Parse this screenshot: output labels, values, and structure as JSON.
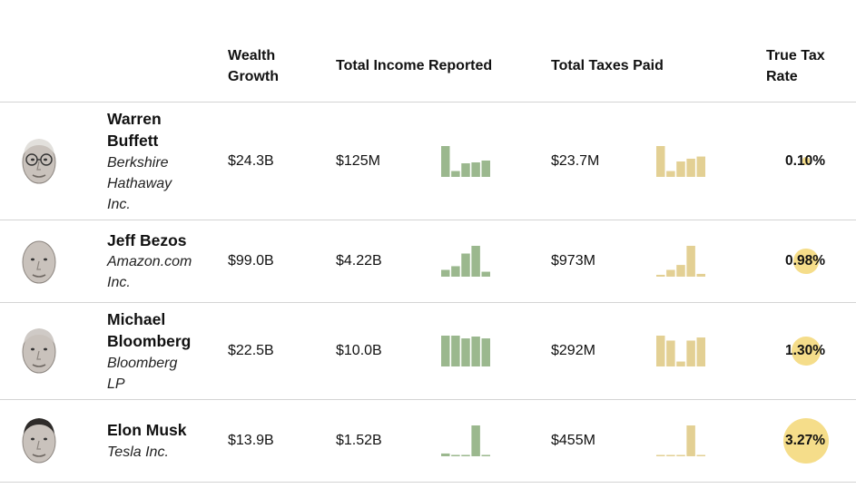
{
  "colors": {
    "income_bars": "#9bb88e",
    "tax_bars": "#e3d094",
    "rate_circle": "#f5dd8a",
    "divider": "#d4d4d4"
  },
  "headers": {
    "wealth_growth_line1": "Wealth",
    "wealth_growth_line2": "Growth",
    "income": "Total Income Reported",
    "taxes": "Total Taxes Paid",
    "rate_line1": "True Tax",
    "rate_line2": "Rate"
  },
  "rows": [
    {
      "name_lines": [
        "Warren",
        "Buffett"
      ],
      "company_lines": [
        "Berkshire",
        "Hathaway",
        "Inc."
      ],
      "avatar": "warren-buffett-portrait",
      "wealth_growth": "$24.3B",
      "income_total": "$125M",
      "taxes_total": "$23.7M",
      "true_tax_rate": "0.10%",
      "true_tax_rate_value": 0.1,
      "income_bars": [
        1.0,
        0.19,
        0.44,
        0.47,
        0.53
      ],
      "tax_bars": [
        1.0,
        0.19,
        0.5,
        0.59,
        0.66
      ]
    },
    {
      "name_lines": [
        "Jeff Bezos"
      ],
      "company_lines": [
        "Amazon.com",
        "Inc."
      ],
      "avatar": "jeff-bezos-portrait",
      "wealth_growth": "$99.0B",
      "income_total": "$4.22B",
      "taxes_total": "$973M",
      "true_tax_rate": "0.98%",
      "true_tax_rate_value": 0.98,
      "income_bars": [
        0.22,
        0.34,
        0.75,
        1.0,
        0.16
      ],
      "tax_bars": [
        0.06,
        0.22,
        0.38,
        1.0,
        0.09
      ]
    },
    {
      "name_lines": [
        "Michael",
        "Bloomberg"
      ],
      "company_lines": [
        "Bloomberg",
        "LP"
      ],
      "avatar": "michael-bloomberg-portrait",
      "wealth_growth": "$22.5B",
      "income_total": "$10.0B",
      "taxes_total": "$292M",
      "true_tax_rate": "1.30%",
      "true_tax_rate_value": 1.3,
      "income_bars": [
        1.0,
        1.0,
        0.91,
        0.97,
        0.91
      ],
      "tax_bars": [
        1.0,
        0.84,
        0.16,
        0.84,
        0.94
      ]
    },
    {
      "name_lines": [
        "Elon Musk"
      ],
      "company_lines": [
        "Tesla Inc."
      ],
      "avatar": "elon-musk-portrait",
      "wealth_growth": "$13.9B",
      "income_total": "$1.52B",
      "taxes_total": "$455M",
      "true_tax_rate": "3.27%",
      "true_tax_rate_value": 3.27,
      "income_bars": [
        0.09,
        0.03,
        0.03,
        1.0,
        0.03
      ],
      "tax_bars": [
        0.03,
        0.03,
        0.03,
        1.0,
        0.03
      ]
    }
  ]
}
